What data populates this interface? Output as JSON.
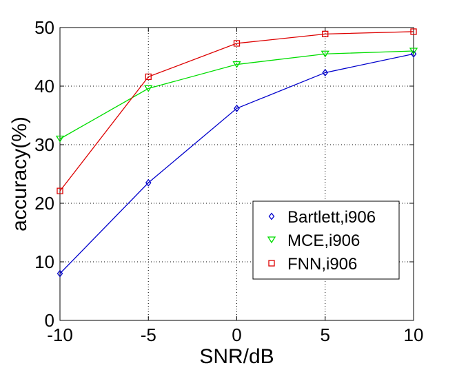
{
  "chart_data": {
    "type": "line",
    "xlabel": "SNR/dB",
    "ylabel": "accuracy(%)",
    "x": [
      -10,
      -5,
      0,
      5,
      10
    ],
    "xlim": [
      -10,
      10
    ],
    "ylim": [
      0,
      50
    ],
    "xticks": [
      -10,
      -5,
      0,
      5,
      10
    ],
    "yticks": [
      0,
      10,
      20,
      30,
      40,
      50
    ],
    "xtick_labels": [
      "-10",
      "-5",
      "0",
      "5",
      "10"
    ],
    "ytick_labels": [
      "0",
      "10",
      "20",
      "30",
      "40",
      "50"
    ],
    "grid": true,
    "legend_position": "lower-right",
    "series": [
      {
        "name": "Bartlett,i906",
        "values": [
          8.0,
          23.5,
          36.2,
          42.3,
          45.5
        ],
        "color": "#0000cc",
        "marker": "diamond"
      },
      {
        "name": "MCE,i906",
        "values": [
          31.0,
          39.6,
          43.7,
          45.5,
          46.0
        ],
        "color": "#00dd00",
        "marker": "triangle-down"
      },
      {
        "name": "FNN,i906",
        "values": [
          22.1,
          41.6,
          47.3,
          48.9,
          49.3
        ],
        "color": "#dd0000",
        "marker": "square"
      }
    ]
  }
}
